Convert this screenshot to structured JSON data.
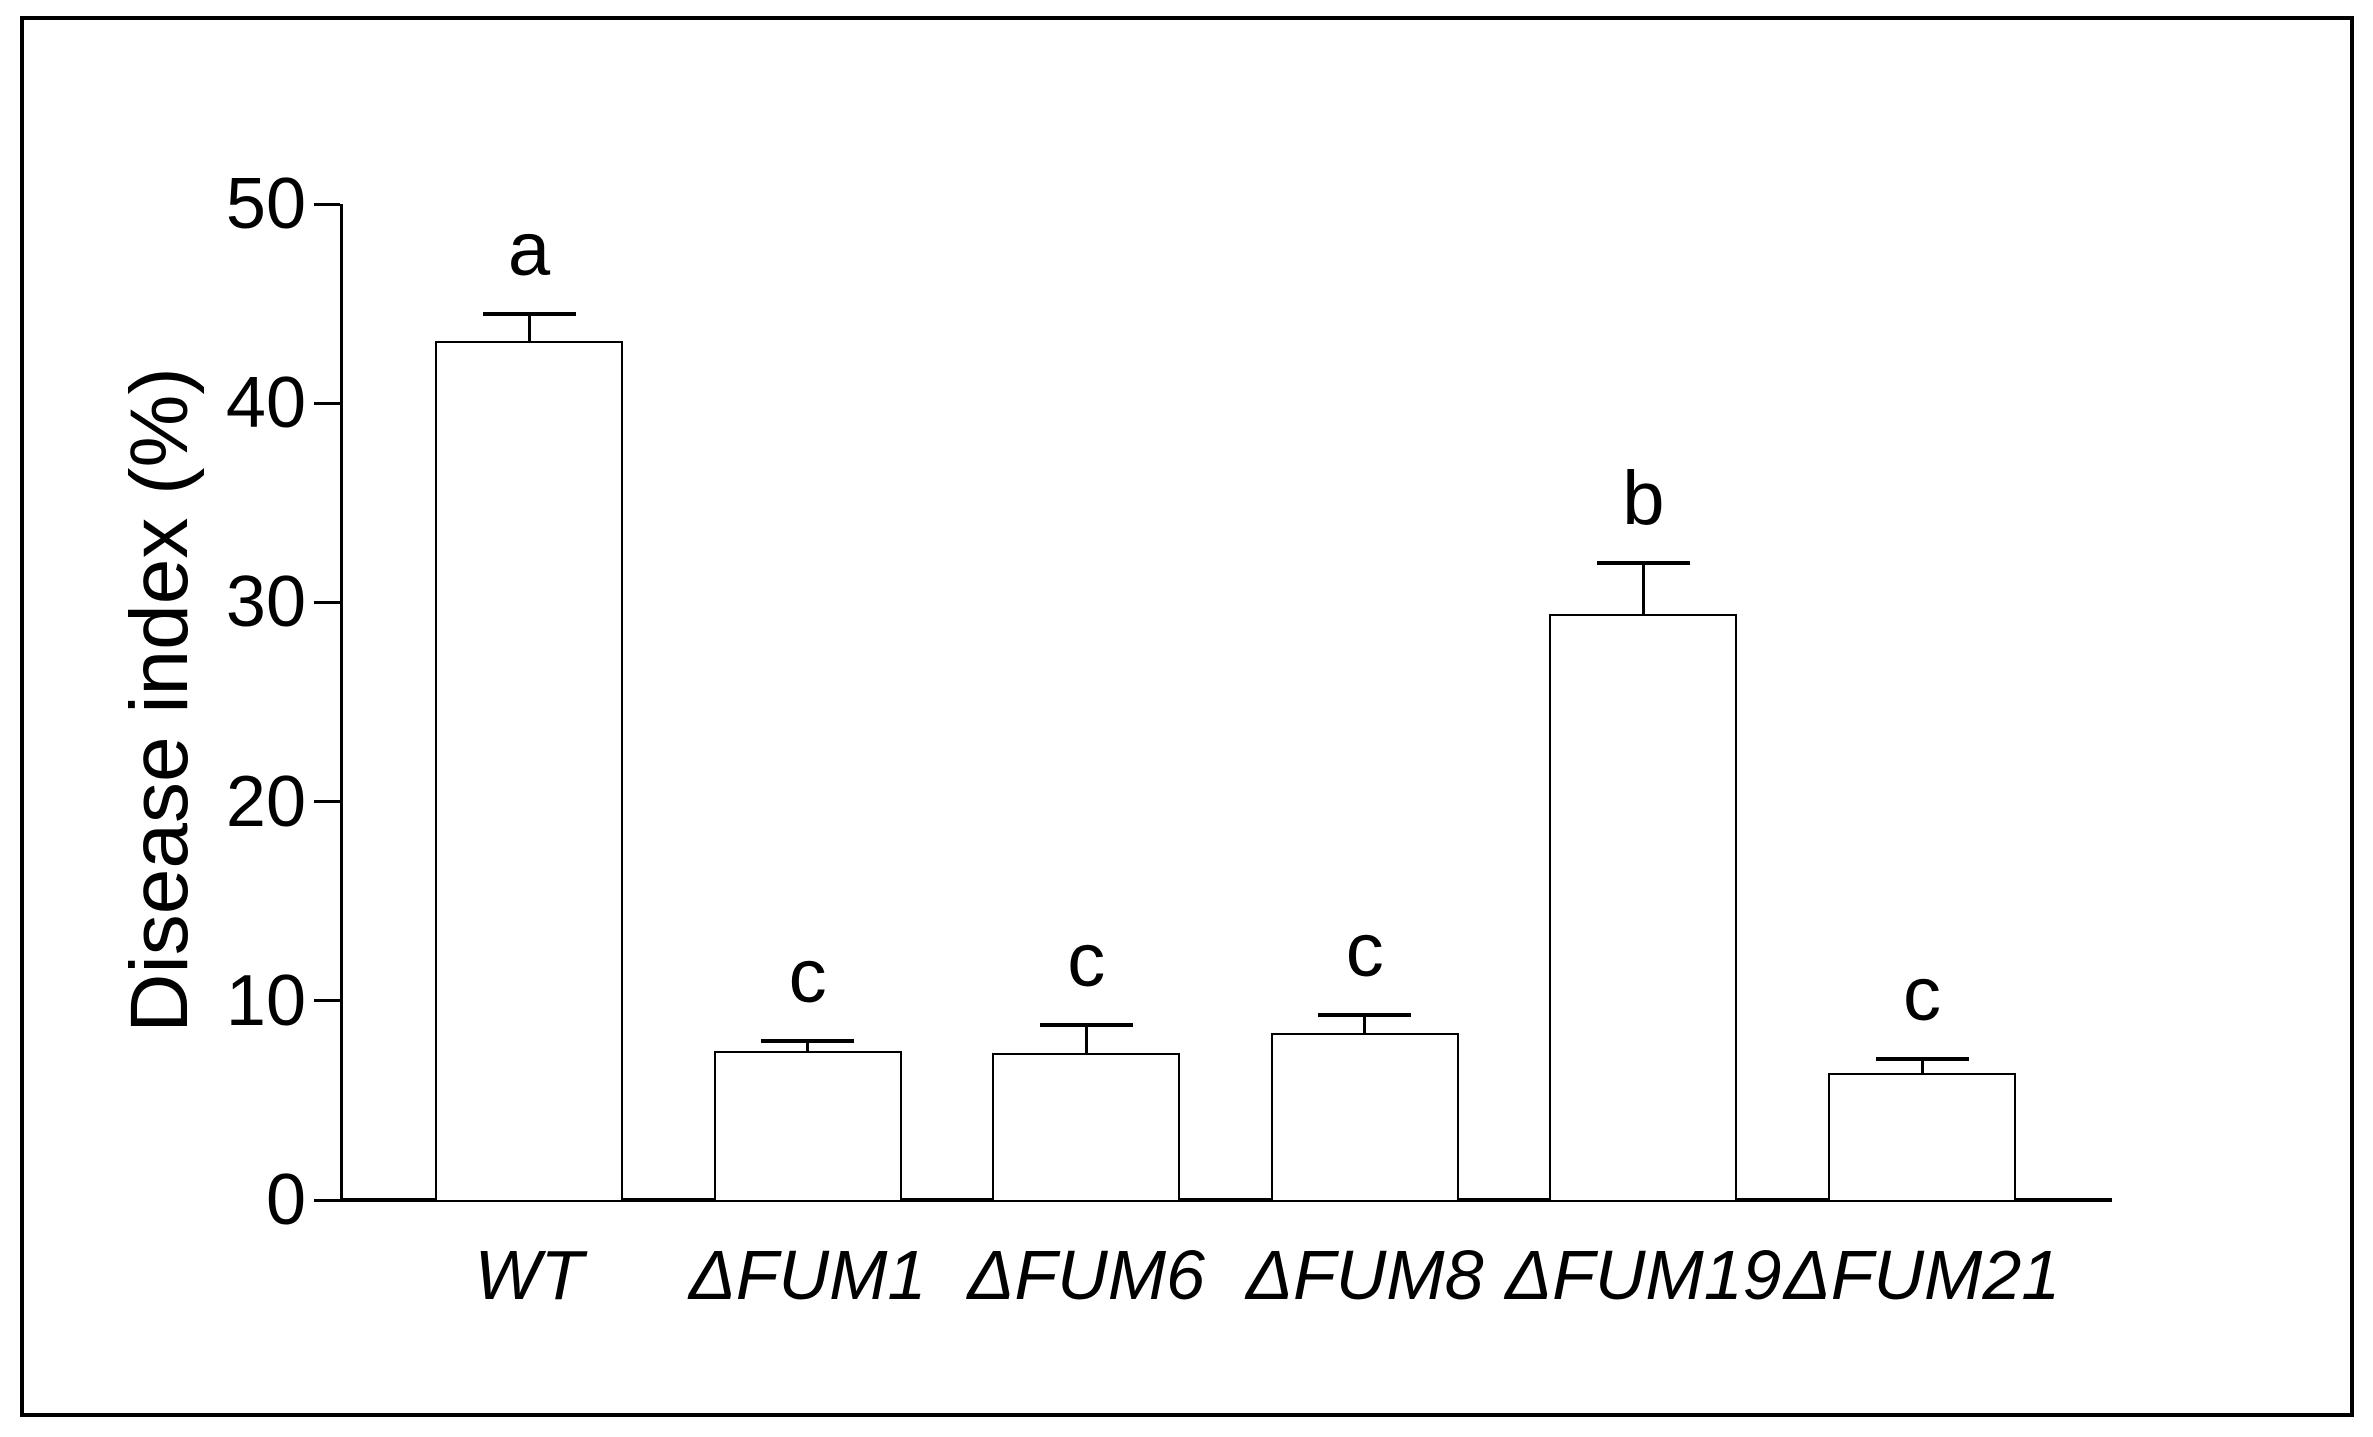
{
  "figure": {
    "background": "#ffffff",
    "frame_color": "#000000"
  },
  "chart_data": {
    "type": "bar",
    "title": "",
    "xlabel": "",
    "ylabel": "Disease index (%)",
    "ylim": [
      0,
      50
    ],
    "yticks": [
      0,
      10,
      20,
      30,
      40,
      50
    ],
    "categories": [
      "WT",
      "ΔFUM1",
      "ΔFUM6",
      "ΔFUM8",
      "ΔFUM19",
      "ΔFUM21"
    ],
    "series": [
      {
        "name": "Disease index",
        "values": [
          43.1,
          7.5,
          7.4,
          8.4,
          29.4,
          6.4
        ],
        "errors_upper": [
          1.4,
          0.5,
          1.4,
          0.9,
          2.6,
          0.7
        ],
        "sig_letters": [
          "a",
          "c",
          "c",
          "c",
          "b",
          "c"
        ]
      }
    ],
    "grid": false,
    "legend": false,
    "bar_fill": "#ffffff",
    "bar_stroke": "#000000",
    "axis_color": "#000000",
    "text_color": "#000000"
  }
}
